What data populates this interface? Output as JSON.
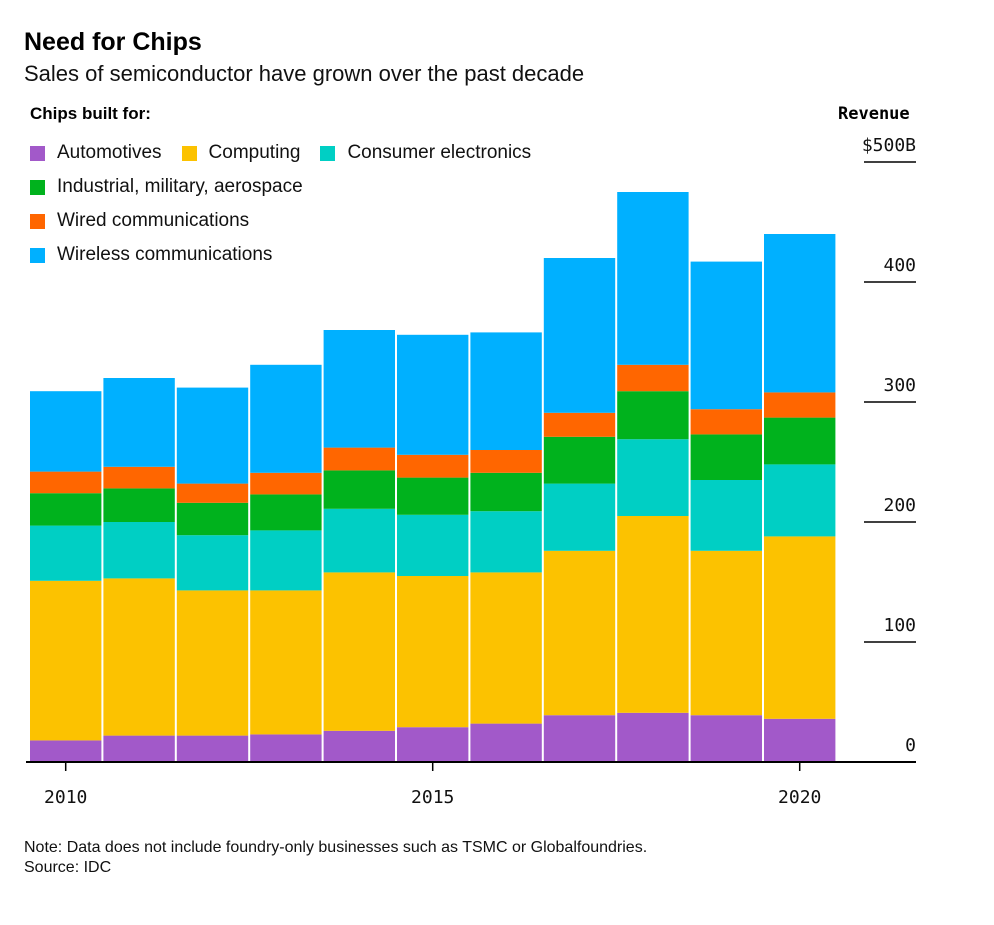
{
  "header": {
    "title": "Need for Chips",
    "subtitle": "Sales of semiconductor have grown over the past decade"
  },
  "legend": {
    "title": "Chips built for:",
    "rows": [
      [
        {
          "label": "Automotives",
          "color": "#a259c9"
        },
        {
          "label": "Computing",
          "color": "#fcc200"
        },
        {
          "label": "Consumer electronics",
          "color": "#00cfc4"
        }
      ],
      [
        {
          "label": "Industrial, military, aerospace",
          "color": "#00b21d"
        }
      ],
      [
        {
          "label": "Wired communications",
          "color": "#ff6600"
        }
      ],
      [
        {
          "label": "Wireless communications",
          "color": "#00b0ff"
        }
      ]
    ]
  },
  "axis": {
    "revenue_label": "Revenue",
    "y_tick_labels": [
      "$500B",
      "400",
      "300",
      "200",
      "100",
      "0"
    ],
    "x_tick_labels": [
      "2010",
      "2015",
      "2020"
    ]
  },
  "footer": {
    "note": "Note: Data does not include foundry-only businesses such as TSMC or Globalfoundries.",
    "source": "Source: IDC"
  },
  "chart_data": {
    "type": "bar",
    "stacked": true,
    "ylim": [
      0,
      500
    ],
    "yticks": [
      0,
      100,
      200,
      300,
      400,
      500
    ],
    "xticks": [
      2010,
      2015,
      2020
    ],
    "categories": [
      2010,
      2011,
      2012,
      2013,
      2014,
      2015,
      2016,
      2017,
      2018,
      2019,
      2020
    ],
    "series": [
      {
        "name": "Automotives",
        "color": "#a259c9",
        "values": [
          18,
          22,
          22,
          23,
          26,
          29,
          32,
          39,
          41,
          39,
          36
        ]
      },
      {
        "name": "Computing",
        "color": "#fcc200",
        "values": [
          133,
          131,
          121,
          120,
          132,
          126,
          126,
          137,
          164,
          137,
          152
        ]
      },
      {
        "name": "Consumer electronics",
        "color": "#00cfc4",
        "values": [
          46,
          47,
          46,
          50,
          53,
          51,
          51,
          56,
          64,
          59,
          60
        ]
      },
      {
        "name": "Industrial, military, aerospace",
        "color": "#00b21d",
        "values": [
          27,
          28,
          27,
          30,
          32,
          31,
          32,
          39,
          40,
          38,
          39
        ]
      },
      {
        "name": "Wired communications",
        "color": "#ff6600",
        "values": [
          18,
          18,
          16,
          18,
          19,
          19,
          19,
          20,
          22,
          21,
          21
        ]
      },
      {
        "name": "Wireless communications",
        "color": "#00b0ff",
        "values": [
          67,
          74,
          80,
          90,
          98,
          100,
          98,
          129,
          144,
          123,
          132
        ]
      }
    ]
  }
}
